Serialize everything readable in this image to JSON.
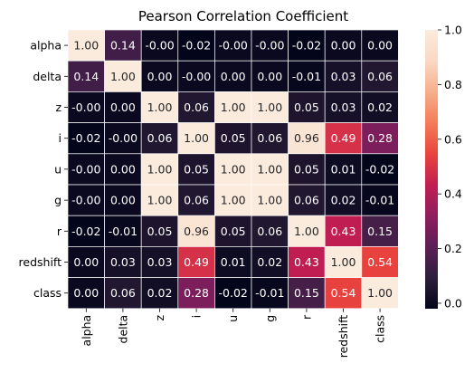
{
  "chart_data": {
    "type": "heatmap",
    "title": "Pearson Correlation Coefficient",
    "labels": [
      "alpha",
      "delta",
      "z",
      "i",
      "u",
      "g",
      "r",
      "redshift",
      "class"
    ],
    "values": [
      [
        1.0,
        0.14,
        -0.0,
        -0.02,
        -0.0,
        -0.0,
        -0.02,
        0.0,
        0.0
      ],
      [
        0.14,
        1.0,
        0.0,
        -0.0,
        0.0,
        0.0,
        -0.01,
        0.03,
        0.06
      ],
      [
        -0.0,
        0.0,
        1.0,
        0.06,
        1.0,
        1.0,
        0.05,
        0.03,
        0.02
      ],
      [
        -0.02,
        -0.0,
        0.06,
        1.0,
        0.05,
        0.06,
        0.96,
        0.49,
        0.28
      ],
      [
        -0.0,
        0.0,
        1.0,
        0.05,
        1.0,
        1.0,
        0.05,
        0.01,
        -0.02
      ],
      [
        -0.0,
        0.0,
        1.0,
        0.06,
        1.0,
        1.0,
        0.06,
        0.02,
        -0.01
      ],
      [
        -0.02,
        -0.01,
        0.05,
        0.96,
        0.05,
        0.06,
        1.0,
        0.43,
        0.15
      ],
      [
        0.0,
        0.03,
        0.03,
        0.49,
        0.01,
        0.02,
        0.43,
        1.0,
        0.54
      ],
      [
        0.0,
        0.06,
        0.02,
        0.28,
        -0.02,
        -0.01,
        0.15,
        0.54,
        1.0
      ]
    ],
    "cell_labels": [
      [
        "1.00",
        "0.14",
        "-0.00",
        "-0.02",
        "-0.00",
        "-0.00",
        "-0.02",
        "0.00",
        "0.00"
      ],
      [
        "0.14",
        "1.00",
        "0.00",
        "-0.00",
        "0.00",
        "0.00",
        "-0.01",
        "0.03",
        "0.06"
      ],
      [
        "-0.00",
        "0.00",
        "1.00",
        "0.06",
        "1.00",
        "1.00",
        "0.05",
        "0.03",
        "0.02"
      ],
      [
        "-0.02",
        "-0.00",
        "0.06",
        "1.00",
        "0.05",
        "0.06",
        "0.96",
        "0.49",
        "0.28"
      ],
      [
        "-0.00",
        "0.00",
        "1.00",
        "0.05",
        "1.00",
        "1.00",
        "0.05",
        "0.01",
        "-0.02"
      ],
      [
        "-0.00",
        "0.00",
        "1.00",
        "0.06",
        "1.00",
        "1.00",
        "0.06",
        "0.02",
        "-0.01"
      ],
      [
        "-0.02",
        "-0.01",
        "0.05",
        "0.96",
        "0.05",
        "0.06",
        "1.00",
        "0.43",
        "0.15"
      ],
      [
        "0.00",
        "0.03",
        "0.03",
        "0.49",
        "0.01",
        "0.02",
        "0.43",
        "1.00",
        "0.54"
      ],
      [
        "0.00",
        "0.06",
        "0.02",
        "0.28",
        "-0.02",
        "-0.01",
        "0.15",
        "0.54",
        "1.00"
      ]
    ],
    "colorbar": {
      "range": [
        -0.02,
        1.0
      ],
      "ticks": [
        0.0,
        0.2,
        0.4,
        0.6,
        0.8,
        1.0
      ],
      "tick_labels": [
        "0.0",
        "0.2",
        "0.4",
        "0.6",
        "0.8",
        "1.0"
      ]
    },
    "colormap": "rocket",
    "colormap_stops": [
      "#03051a",
      "#2e1e3b",
      "#5d1f57",
      "#8f1e5e",
      "#c11e52",
      "#e9443d",
      "#f47c58",
      "#f7ae8b",
      "#fad8c4",
      "#faebdd"
    ],
    "cell_border_color": "#ffffff",
    "dark_text_color": "#262626",
    "light_text_color": "#ffffff"
  }
}
